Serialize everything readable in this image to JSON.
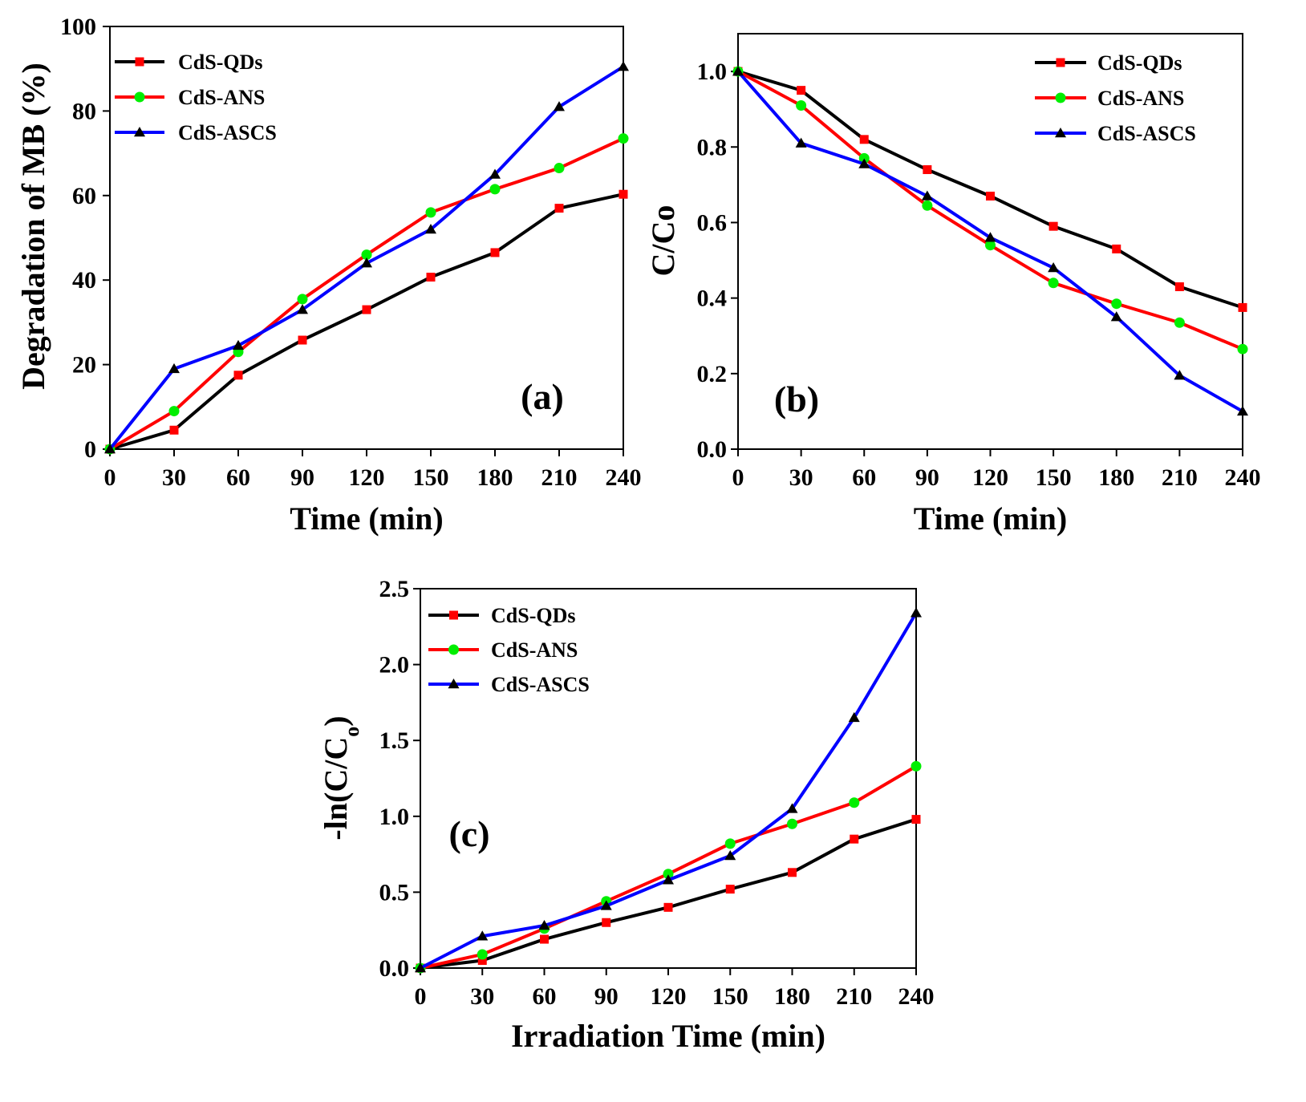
{
  "chart_data": [
    {
      "type": "line",
      "panel_label": "(a)",
      "xlabel": "Time (min)",
      "ylabel": "Degradation of MB (%)",
      "x": [
        0,
        30,
        60,
        90,
        120,
        150,
        180,
        210,
        240
      ],
      "xticks": [
        "0",
        "30",
        "60",
        "90",
        "120",
        "150",
        "180",
        "210",
        "240"
      ],
      "yticks": [
        "0",
        "20",
        "40",
        "60",
        "80",
        "100"
      ],
      "xlim": [
        0,
        240
      ],
      "ylim": [
        0,
        100
      ],
      "legend_position": "top-left",
      "series": [
        {
          "name": "CdS-QDs",
          "line_color": "#000000",
          "marker": "square",
          "marker_color": "#ff0000",
          "values": [
            0,
            4.5,
            17.5,
            25.8,
            33,
            40.7,
            46.5,
            57,
            60.3
          ]
        },
        {
          "name": "CdS-ANS",
          "line_color": "#ff0000",
          "marker": "circle",
          "marker_color": "#00ee00",
          "values": [
            0,
            9,
            23,
            35.5,
            46,
            56,
            61.5,
            66.5,
            73.5
          ]
        },
        {
          "name": "CdS-ASCS",
          "line_color": "#0000ff",
          "marker": "triangle",
          "marker_color": "#000000",
          "values": [
            0,
            19,
            24.5,
            33,
            44,
            52,
            65,
            81,
            90.5
          ]
        }
      ]
    },
    {
      "type": "line",
      "panel_label": "(b)",
      "xlabel": "Time (min)",
      "ylabel": "C/Co",
      "x": [
        0,
        30,
        60,
        90,
        120,
        150,
        180,
        210,
        240
      ],
      "xticks": [
        "0",
        "30",
        "60",
        "90",
        "120",
        "150",
        "180",
        "210",
        "240"
      ],
      "yticks": [
        "0.0",
        "0.2",
        "0.4",
        "0.6",
        "0.8",
        "1.0"
      ],
      "xlim": [
        0,
        240
      ],
      "ylim": [
        0,
        1.1
      ],
      "legend_position": "top-right",
      "series": [
        {
          "name": "CdS-QDs",
          "line_color": "#000000",
          "marker": "square",
          "marker_color": "#ff0000",
          "values": [
            1.0,
            0.95,
            0.82,
            0.74,
            0.67,
            0.59,
            0.53,
            0.43,
            0.375
          ]
        },
        {
          "name": "CdS-ANS",
          "line_color": "#ff0000",
          "marker": "circle",
          "marker_color": "#00ee00",
          "values": [
            1.0,
            0.91,
            0.77,
            0.645,
            0.54,
            0.44,
            0.385,
            0.335,
            0.265
          ]
        },
        {
          "name": "CdS-ASCS",
          "line_color": "#0000ff",
          "marker": "triangle",
          "marker_color": "#000000",
          "values": [
            1.0,
            0.81,
            0.755,
            0.67,
            0.56,
            0.48,
            0.35,
            0.195,
            0.1
          ]
        }
      ]
    },
    {
      "type": "line",
      "panel_label": "(c)",
      "xlabel": "Irradiation Time (min)",
      "ylabel": "-ln(C/C",
      "ylabel_subscript": "o",
      "ylabel_suffix": ")",
      "x": [
        0,
        30,
        60,
        90,
        120,
        150,
        180,
        210,
        240
      ],
      "xticks": [
        "0",
        "30",
        "60",
        "90",
        "120",
        "150",
        "180",
        "210",
        "240"
      ],
      "yticks": [
        "0.0",
        "0.5",
        "1.0",
        "1.5",
        "2.0",
        "2.5"
      ],
      "xlim": [
        0,
        240
      ],
      "ylim": [
        0,
        2.5
      ],
      "legend_position": "top-left",
      "series": [
        {
          "name": "CdS-QDs",
          "line_color": "#000000",
          "marker": "square",
          "marker_color": "#ff0000",
          "values": [
            0,
            0.05,
            0.19,
            0.3,
            0.4,
            0.52,
            0.63,
            0.85,
            0.98
          ]
        },
        {
          "name": "CdS-ANS",
          "line_color": "#ff0000",
          "marker": "circle",
          "marker_color": "#00ee00",
          "values": [
            0,
            0.09,
            0.26,
            0.44,
            0.62,
            0.82,
            0.95,
            1.09,
            1.33
          ]
        },
        {
          "name": "CdS-ASCS",
          "line_color": "#0000ff",
          "marker": "triangle",
          "marker_color": "#000000",
          "values": [
            0,
            0.21,
            0.28,
            0.41,
            0.58,
            0.74,
            1.05,
            1.65,
            2.34
          ]
        }
      ]
    }
  ]
}
